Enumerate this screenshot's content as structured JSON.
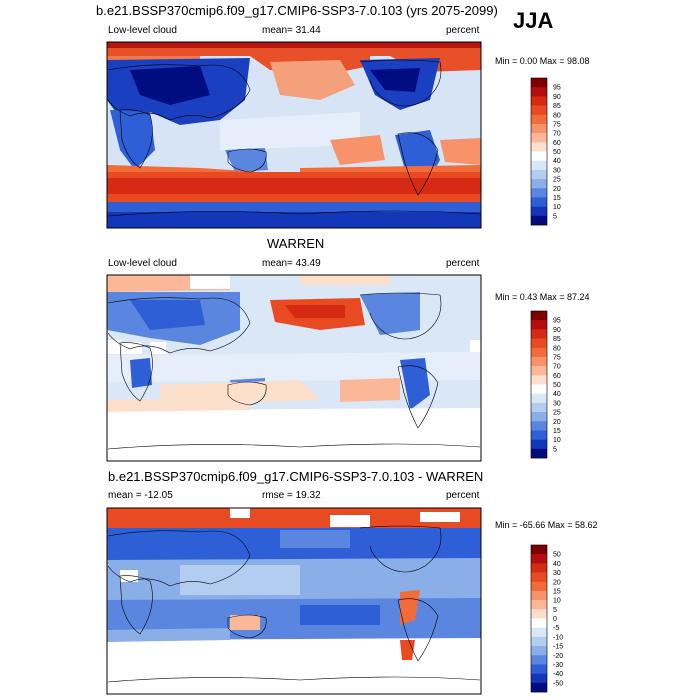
{
  "season": "JJA",
  "panels": [
    {
      "id": "model",
      "title": "b.e21.BSSP370cmip6.f09_g17.CMIP6-SSP3-7.0.103 (yrs 2075-2099)",
      "left_label": "Low-level cloud",
      "center_label": "mean=  31.44",
      "right_label": "percent",
      "minmax": "Min =   0.00 Max =  98.08",
      "colorbar_levels": [
        "95",
        "90",
        "85",
        "80",
        "75",
        "70",
        "60",
        "50",
        "40",
        "30",
        "25",
        "20",
        "15",
        "10",
        "5"
      ],
      "colorbar_colors": [
        "#7f0000",
        "#b50e0e",
        "#d62a14",
        "#e84a22",
        "#f26c3a",
        "#f7926a",
        "#fab898",
        "#fde0cc",
        "#ffffff",
        "#d9e7f7",
        "#b3cdf0",
        "#8aaee8",
        "#5b86e0",
        "#2f5fd6",
        "#1436b8",
        "#000d80"
      ]
    },
    {
      "id": "obs",
      "title": "WARREN",
      "left_label": "Low-level cloud",
      "center_label": "mean=  43.49",
      "right_label": "percent",
      "minmax": "Min =   0.43 Max =  87.24",
      "colorbar_levels": [
        "95",
        "90",
        "85",
        "80",
        "75",
        "70",
        "60",
        "50",
        "40",
        "30",
        "25",
        "20",
        "15",
        "10",
        "5"
      ],
      "colorbar_colors": [
        "#7f0000",
        "#b50e0e",
        "#d62a14",
        "#e84a22",
        "#f26c3a",
        "#f7926a",
        "#fab898",
        "#fde0cc",
        "#ffffff",
        "#d9e7f7",
        "#b3cdf0",
        "#8aaee8",
        "#5b86e0",
        "#2f5fd6",
        "#1436b8",
        "#000d80"
      ]
    },
    {
      "id": "diff",
      "title": "b.e21.BSSP370cmip6.f09_g17.CMIP6-SSP3-7.0.103 - WARREN",
      "left_label": "mean = -12.05",
      "center_label": "rmse =  19.32",
      "right_label": "percent",
      "minmax": "Min = -65.66 Max =  58.62",
      "colorbar_levels": [
        "50",
        "40",
        "30",
        "20",
        "15",
        "10",
        "5",
        "0",
        "-5",
        "-10",
        "-15",
        "-20",
        "-30",
        "-40",
        "-50"
      ],
      "colorbar_colors": [
        "#7f0000",
        "#b50e0e",
        "#d62a14",
        "#e84a22",
        "#f26c3a",
        "#f7926a",
        "#fab898",
        "#fde0cc",
        "#ffffff",
        "#d9e7f7",
        "#b3cdf0",
        "#8aaee8",
        "#5b86e0",
        "#2f5fd6",
        "#1436b8",
        "#000d80"
      ]
    }
  ]
}
